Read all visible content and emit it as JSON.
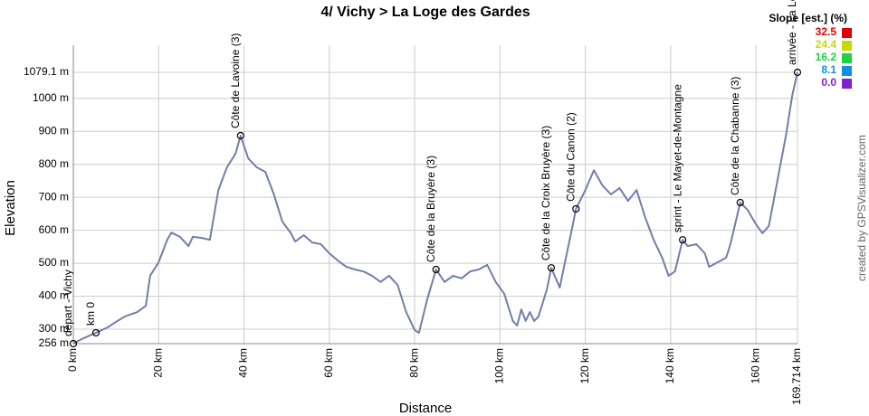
{
  "chart_data": {
    "type": "line",
    "title": "4/ Vichy > La Loge des Gardes",
    "x_label": "Distance",
    "y_label": "Elevation",
    "credit": "created by GPSVisualizer.com",
    "series": [
      {
        "name": "Elevation",
        "color": "#6f7fa8",
        "x": [
          0,
          2,
          5.3,
          8,
          10,
          12,
          15,
          17,
          18,
          20,
          22,
          23,
          25,
          27,
          28,
          30,
          32,
          34,
          36,
          38,
          39.2,
          41,
          43,
          45,
          47,
          49,
          51,
          52,
          54,
          56,
          58,
          60,
          62,
          64,
          66,
          68,
          70,
          72,
          74,
          76,
          78,
          80,
          81,
          83,
          85,
          87,
          89,
          91,
          93,
          95,
          97,
          99,
          101,
          103,
          104,
          105,
          106,
          107,
          108,
          109,
          111,
          112,
          114,
          115,
          117,
          117.8,
          120,
          122,
          124,
          126,
          128,
          130,
          132,
          134,
          136,
          138,
          139.5,
          141,
          142.8,
          144,
          146,
          148,
          149,
          151,
          153,
          154,
          156.3,
          158,
          160,
          161.5,
          163,
          165,
          167,
          168.5,
          169.714
        ],
        "values": [
          256,
          270,
          289,
          305,
          322,
          338,
          352,
          371,
          462,
          503,
          571,
          593,
          580,
          552,
          580,
          577,
          571,
          722,
          791,
          832,
          887,
          818,
          791,
          777,
          709,
          626,
          591,
          566,
          585,
          563,
          558,
          530,
          508,
          489,
          481,
          475,
          462,
          443,
          462,
          434,
          352,
          297,
          289,
          393,
          481,
          443,
          462,
          454,
          475,
          481,
          495,
          443,
          407,
          325,
          311,
          360,
          325,
          352,
          325,
          338,
          421,
          486,
          426,
          489,
          613,
          665,
          722,
          782,
          736,
          709,
          728,
          689,
          722,
          640,
          571,
          517,
          462,
          475,
          571,
          552,
          558,
          530,
          489,
          503,
          517,
          558,
          684,
          662,
          618,
          591,
          613,
          750,
          887,
          1010,
          1079.1
        ]
      }
    ],
    "annotations": [
      {
        "x": 0,
        "y": 256,
        "label": "départ - Vichy"
      },
      {
        "x": 5.3,
        "y": 289,
        "label": "km 0"
      },
      {
        "x": 39.2,
        "y": 887,
        "label": "Côte de Lavoine (3)"
      },
      {
        "x": 85,
        "y": 481,
        "label": "Côte de la Bruyère (3)"
      },
      {
        "x": 112,
        "y": 486,
        "label": "Côte de la Croix Bruyère (3)"
      },
      {
        "x": 117.8,
        "y": 665,
        "label": "Côte du Canon (2)"
      },
      {
        "x": 142.8,
        "y": 571,
        "label": "sprint - Le Mayet-de-Montagne"
      },
      {
        "x": 156.3,
        "y": 684,
        "label": "Côte de la Chabanne (3)"
      },
      {
        "x": 169.714,
        "y": 1079.1,
        "label": "arrivée - La Loge des Gardes"
      }
    ],
    "xlim": [
      0,
      169.714
    ],
    "ylim": [
      256,
      1079.1
    ],
    "xticks": [
      {
        "value": 0,
        "label": "0 km"
      },
      {
        "value": 20,
        "label": "20 km"
      },
      {
        "value": 40,
        "label": "40 km"
      },
      {
        "value": 60,
        "label": "60 km"
      },
      {
        "value": 80,
        "label": "80 km"
      },
      {
        "value": 100,
        "label": "100 km"
      },
      {
        "value": 120,
        "label": "120 km"
      },
      {
        "value": 140,
        "label": "140 km"
      },
      {
        "value": 160,
        "label": "160 km"
      },
      {
        "value": 169.714,
        "label": "169.714 km"
      }
    ],
    "yticks": [
      {
        "value": 256,
        "label": "256 m"
      },
      {
        "value": 300,
        "label": "300 m"
      },
      {
        "value": 400,
        "label": "400 m"
      },
      {
        "value": 500,
        "label": "500 m"
      },
      {
        "value": 600,
        "label": "600 m"
      },
      {
        "value": 700,
        "label": "700 m"
      },
      {
        "value": 800,
        "label": "800 m"
      },
      {
        "value": 900,
        "label": "900 m"
      },
      {
        "value": 1000,
        "label": "1000 m"
      },
      {
        "value": 1079.1,
        "label": "1079.1 m"
      }
    ],
    "grid": true,
    "legend": {
      "title": "Slope [est.] (%)",
      "items": [
        {
          "value": 32.5,
          "color": "#e00000"
        },
        {
          "value": 24.4,
          "color": "#c8d800"
        },
        {
          "value": 16.2,
          "color": "#20d040"
        },
        {
          "value": 8.1,
          "color": "#1090e0"
        },
        {
          "value": 0,
          "label": "0.0",
          "color": "#8020d0"
        }
      ]
    }
  }
}
